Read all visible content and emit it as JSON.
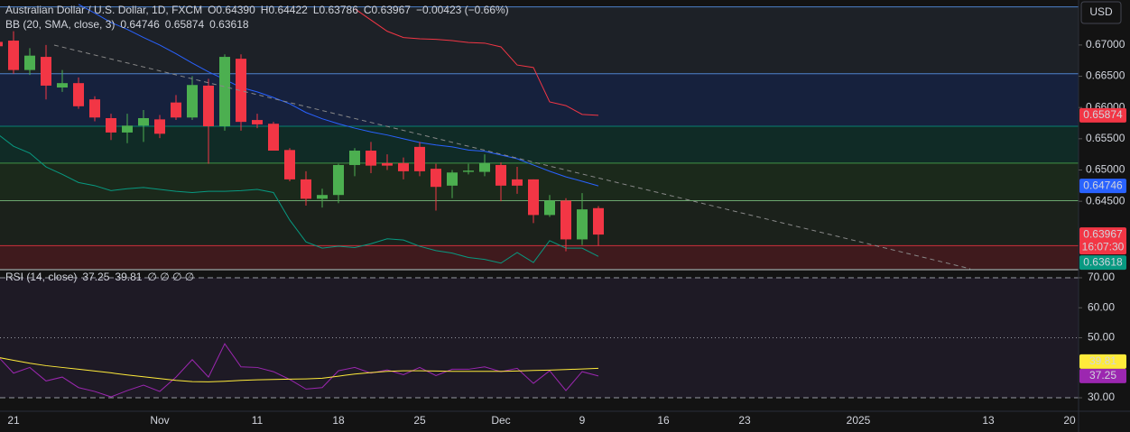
{
  "chart_data": [
    {
      "type": "candlestick",
      "title": "Australian Dollar / U.S. Dollar, 1D, FXCM",
      "ohlc_labels": [
        "O0.64390",
        "H0.64422",
        "L0.63786",
        "C0.63967"
      ],
      "change_label": "−0.00423 (−0.66%)",
      "currency": "USD",
      "countdown": "16:07:30",
      "colors": {
        "up": "#4caf50",
        "down": "#f23645"
      },
      "categories": [
        null,
        "21",
        null,
        null,
        null,
        null,
        null,
        null,
        null,
        null,
        "Nov",
        null,
        null,
        null,
        null,
        null,
        "11",
        null,
        null,
        null,
        null,
        "18",
        null,
        null,
        null,
        null,
        "25",
        null,
        null,
        null,
        null,
        "Dec",
        null,
        null,
        null,
        null,
        "9",
        null,
        null,
        null,
        null,
        "16",
        null,
        null,
        null,
        null,
        "23",
        null,
        null,
        null,
        null,
        null,
        null,
        "2025",
        null,
        null,
        null,
        null,
        null,
        null,
        null,
        "13",
        null,
        null,
        null,
        null,
        "20"
      ],
      "open": [
        0.6705,
        0.6707,
        0.666,
        0.6681,
        0.6632,
        0.6639,
        0.6613,
        0.6583,
        0.656,
        0.6571,
        0.6581,
        0.6608,
        0.6584,
        0.6635,
        0.657,
        0.6678,
        0.658,
        0.6574,
        0.6532,
        0.6485,
        0.6454,
        0.646,
        0.6508,
        0.6531,
        0.6511,
        0.6511,
        0.6537,
        0.6502,
        0.6475,
        0.6497,
        0.6497,
        0.6508,
        0.6485,
        0.6485,
        0.6428,
        0.6451,
        0.6389,
        0.6439,
        null,
        null,
        null,
        null,
        null,
        null,
        null,
        null,
        null,
        null,
        null,
        null,
        null,
        null,
        null,
        null,
        null,
        null,
        null,
        null,
        null,
        null,
        null,
        null,
        null,
        null,
        null,
        null,
        null
      ],
      "high": [
        0.6715,
        0.6722,
        0.6695,
        0.67,
        0.666,
        0.6648,
        0.6618,
        0.659,
        0.659,
        0.6596,
        0.6588,
        0.662,
        0.665,
        0.6646,
        0.6685,
        0.6685,
        0.659,
        0.6577,
        0.6535,
        0.6498,
        0.647,
        0.651,
        0.6535,
        0.6545,
        0.6525,
        0.652,
        0.6545,
        0.651,
        0.65,
        0.651,
        0.6525,
        0.6512,
        0.6505,
        0.6485,
        0.646,
        0.6455,
        0.6463,
        0.64422,
        null,
        null,
        null,
        null,
        null,
        null,
        null,
        null,
        null,
        null,
        null,
        null,
        null,
        null,
        null,
        null,
        null,
        null,
        null,
        null,
        null,
        null,
        null,
        null,
        null,
        null,
        null,
        null,
        null
      ],
      "low": [
        0.669,
        0.6654,
        0.6652,
        0.6613,
        0.6625,
        0.6598,
        0.6578,
        0.6548,
        0.6543,
        0.6545,
        0.6551,
        0.658,
        0.658,
        0.651,
        0.6563,
        0.6563,
        0.6567,
        0.6531,
        0.6482,
        0.6443,
        0.644,
        0.6447,
        0.649,
        0.6495,
        0.65,
        0.6485,
        0.649,
        0.6435,
        0.6455,
        0.6493,
        0.649,
        0.645,
        0.6462,
        0.6415,
        0.6425,
        0.637,
        0.638,
        0.63786,
        null,
        null,
        null,
        null,
        null,
        null,
        null,
        null,
        null,
        null,
        null,
        null,
        null,
        null,
        null,
        null,
        null,
        null,
        null,
        null,
        null,
        null,
        null,
        null,
        null,
        null,
        null,
        null,
        null
      ],
      "close": [
        0.6698,
        0.666,
        0.6683,
        0.6635,
        0.6639,
        0.6602,
        0.6584,
        0.656,
        0.6571,
        0.6583,
        0.6558,
        0.6584,
        0.6636,
        0.657,
        0.6681,
        0.6577,
        0.6573,
        0.6531,
        0.6485,
        0.6454,
        0.646,
        0.6508,
        0.6531,
        0.6507,
        0.6507,
        0.6498,
        0.6498,
        0.6473,
        0.6496,
        0.6499,
        0.6511,
        0.6475,
        0.6475,
        0.6428,
        0.6451,
        0.6389,
        0.6437,
        0.63967,
        null,
        null,
        null,
        null,
        null,
        null,
        null,
        null,
        null,
        null,
        null,
        null,
        null,
        null,
        null,
        null,
        null,
        null,
        null,
        null,
        null,
        null,
        null,
        null,
        null,
        null,
        null,
        null,
        null
      ],
      "indicator": {
        "name": "BB (20, SMA, close, 3)",
        "series": [
          {
            "color": "#2962ff",
            "values": [
              null,
              null,
              null,
              null,
              null,
              0.6765,
              0.6751,
              0.6736,
              0.6725,
              0.6712,
              0.67,
              0.6686,
              0.6671,
              0.6657,
              0.6645,
              0.6632,
              0.6625,
              0.6616,
              0.6606,
              0.6592,
              0.6582,
              0.6574,
              0.6567,
              0.6561,
              0.6556,
              0.655,
              0.6544,
              0.654,
              0.6537,
              0.6532,
              0.653,
              0.6524,
              0.6518,
              0.6508,
              0.6498,
              0.6489,
              0.6482,
              0.64746,
              null,
              null,
              null,
              null,
              null,
              null,
              null,
              null,
              null,
              null,
              null,
              null,
              null,
              null,
              null,
              null,
              null,
              null,
              null,
              null,
              null,
              null,
              null,
              null,
              null,
              null,
              null,
              null,
              null
            ]
          },
          {
            "color": "#f23645",
            "values": [
              null,
              null,
              null,
              null,
              null,
              null,
              null,
              null,
              null,
              null,
              null,
              null,
              null,
              null,
              null,
              null,
              null,
              null,
              null,
              null,
              null,
              null,
              0.6758,
              0.674,
              0.6722,
              0.6712,
              0.671,
              0.6709,
              0.6707,
              0.6704,
              0.6703,
              0.6697,
              0.6668,
              0.6664,
              0.6609,
              0.6603,
              0.6589,
              0.65874,
              null,
              null,
              null,
              null,
              null,
              null,
              null,
              null,
              null,
              null,
              null,
              null,
              null,
              null,
              null,
              null,
              null,
              null,
              null,
              null,
              null,
              null,
              null,
              null,
              null,
              null,
              null,
              null,
              null
            ]
          },
          {
            "color": "#089981",
            "values": [
              0.6558,
              0.6538,
              0.6527,
              0.6505,
              0.6493,
              0.648,
              0.6475,
              0.6467,
              0.647,
              0.6472,
              0.6469,
              0.6466,
              0.6464,
              0.6466,
              0.6466,
              0.6467,
              0.6469,
              0.6464,
              0.642,
              0.6385,
              0.6375,
              0.6378,
              0.6376,
              0.6382,
              0.639,
              0.6388,
              0.6378,
              0.6371,
              0.6367,
              0.636,
              0.6357,
              0.6351,
              0.6368,
              0.6352,
              0.6387,
              0.6375,
              0.6375,
              0.63618,
              null,
              null,
              null,
              null,
              null,
              null,
              null,
              null,
              null,
              null,
              null,
              null,
              null,
              null,
              null,
              null,
              null,
              null,
              null,
              null,
              null,
              null,
              null,
              null,
              null,
              null,
              null,
              null,
              null
            ]
          }
        ]
      },
      "levels": [
        {
          "value": 0.6761,
          "color": "#5b9cf6",
          "fill": "rgba(91,120,160,0.14)"
        },
        {
          "value": 0.6654,
          "color": "#5b9cf6",
          "fill": "rgba(41,98,255,0.18)"
        },
        {
          "value": 0.657,
          "color": "#089981",
          "fill": "rgba(8,153,129,0.18)"
        },
        {
          "value": 0.6511,
          "color": "#4caf50",
          "fill": "rgba(76,175,80,0.14)"
        },
        {
          "value": 0.6451,
          "color": "#81c784",
          "fill": "rgba(129,199,132,0.08)"
        },
        {
          "value": 0.6379,
          "color": "#f23645",
          "fill": "rgba(242,54,69,0.2)"
        }
      ],
      "ylim": [
        0.6342,
        0.6772
      ],
      "yticks": [
        {
          "value": 0.67,
          "label": "0.67000"
        },
        {
          "value": 0.665,
          "label": "0.66500"
        },
        {
          "value": 0.66,
          "label": "0.66000"
        },
        {
          "value": 0.655,
          "label": "0.65500"
        },
        {
          "value": 0.65,
          "label": "0.65000"
        },
        {
          "value": 0.645,
          "label": "0.64500"
        }
      ]
    },
    {
      "type": "line",
      "title": "RSI (14, close)",
      "extra": "∅ ∅ ∅ ∅",
      "series": [
        {
          "color": "#9c27b0",
          "values": [
            44.0,
            38.2,
            40.1,
            35.6,
            36.9,
            33.4,
            32.1,
            30.3,
            32.4,
            34.2,
            32.1,
            36.9,
            42.7,
            36.9,
            48.0,
            40.3,
            40.1,
            38.7,
            36.1,
            32.9,
            33.4,
            39.0,
            40.1,
            38.2,
            39.3,
            37.7,
            40.1,
            37.4,
            39.5,
            39.5,
            40.3,
            38.7,
            39.8,
            34.8,
            39.0,
            32.4,
            38.7,
            37.25,
            null,
            null,
            null,
            null,
            null,
            null,
            null,
            null,
            null,
            null,
            null,
            null,
            null,
            null,
            null,
            null,
            null,
            null,
            null,
            null,
            null,
            null,
            null,
            null,
            null,
            null,
            null,
            null,
            null
          ]
        },
        {
          "color": "#ffeb3b",
          "values": [
            43.5,
            42.5,
            41.5,
            40.7,
            40.1,
            39.5,
            38.9,
            38.3,
            37.6,
            37.0,
            36.4,
            35.8,
            35.4,
            35.3,
            35.5,
            35.8,
            36.0,
            36.1,
            36.2,
            36.3,
            36.5,
            37.2,
            37.9,
            38.4,
            38.8,
            39.0,
            39.0,
            38.9,
            38.8,
            38.8,
            38.8,
            38.8,
            38.9,
            39.1,
            39.2,
            39.4,
            39.6,
            39.81,
            null,
            null,
            null,
            null,
            null,
            null,
            null,
            null,
            null,
            null,
            null,
            null,
            null,
            null,
            null,
            null,
            null,
            null,
            null,
            null,
            null,
            null,
            null,
            null,
            null,
            null,
            null,
            null,
            null
          ]
        }
      ],
      "band_fill": "rgba(126,87,194,0.10)",
      "ylim": [
        25.5,
        72.4
      ],
      "yticks": [
        {
          "value": 70,
          "label": "70.00",
          "line": "dashed"
        },
        {
          "value": 60,
          "label": "60.00"
        },
        {
          "value": 50,
          "label": "50.00",
          "line": "dotted"
        },
        {
          "value": 30,
          "label": "30.00",
          "line": "dashed"
        }
      ]
    }
  ]
}
